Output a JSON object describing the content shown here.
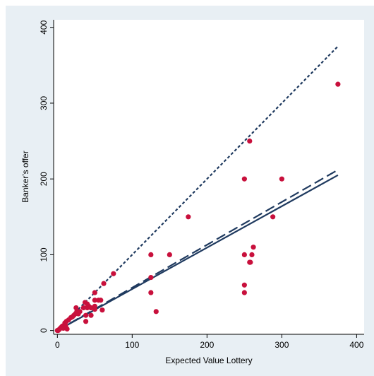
{
  "chart_data": {
    "type": "scatter",
    "title": "",
    "xlabel": "Expected Value Lottery",
    "ylabel": "Banker's offer",
    "xlim": [
      -5,
      410
    ],
    "ylim": [
      -5,
      410
    ],
    "xticks": [
      0,
      100,
      200,
      300,
      400
    ],
    "yticks": [
      0,
      100,
      200,
      300,
      400
    ],
    "xtick_labels": [
      "0",
      "100",
      "200",
      "300",
      "400"
    ],
    "ytick_labels": [
      "0",
      "100",
      "200",
      "300",
      "400"
    ],
    "grid": false,
    "legend": "none",
    "colors": {
      "background": "#e8eff4",
      "plot_area": "#ffffff",
      "points": "#c8103c",
      "lines": "#1f3a5f"
    },
    "points": [
      [
        0,
        0
      ],
      [
        1,
        0
      ],
      [
        2,
        1
      ],
      [
        3,
        2
      ],
      [
        4,
        3
      ],
      [
        5,
        4
      ],
      [
        6,
        5
      ],
      [
        7,
        6
      ],
      [
        8,
        3
      ],
      [
        10,
        10
      ],
      [
        11,
        6
      ],
      [
        12,
        12
      ],
      [
        13,
        2
      ],
      [
        15,
        14
      ],
      [
        18,
        17
      ],
      [
        20,
        18
      ],
      [
        22,
        20
      ],
      [
        24,
        22
      ],
      [
        25,
        30
      ],
      [
        26,
        25
      ],
      [
        28,
        22
      ],
      [
        30,
        25
      ],
      [
        35,
        30
      ],
      [
        37,
        37
      ],
      [
        38,
        20
      ],
      [
        38,
        12
      ],
      [
        40,
        35
      ],
      [
        40,
        30
      ],
      [
        42,
        32
      ],
      [
        45,
        30
      ],
      [
        45,
        20
      ],
      [
        50,
        50
      ],
      [
        50,
        40
      ],
      [
        50,
        32
      ],
      [
        50,
        28
      ],
      [
        55,
        40
      ],
      [
        58,
        40
      ],
      [
        60,
        27
      ],
      [
        62,
        62
      ],
      [
        75,
        75
      ],
      [
        125,
        100
      ],
      [
        125,
        70
      ],
      [
        125,
        50
      ],
      [
        132,
        25
      ],
      [
        150,
        100
      ],
      [
        175,
        150
      ],
      [
        250,
        200
      ],
      [
        250,
        100
      ],
      [
        250,
        60
      ],
      [
        250,
        50
      ],
      [
        257,
        250
      ],
      [
        257,
        90
      ],
      [
        260,
        100
      ],
      [
        262,
        110
      ],
      [
        288,
        150
      ],
      [
        300,
        200
      ],
      [
        375,
        325
      ],
      [
        258,
        90
      ]
    ],
    "lines": [
      {
        "style": "short-dash",
        "x": [
          0,
          375
        ],
        "y": [
          0,
          375
        ]
      },
      {
        "style": "long-dash",
        "x": [
          0,
          375
        ],
        "y": [
          0,
          212
        ]
      },
      {
        "style": "solid",
        "x": [
          0,
          375
        ],
        "y": [
          0,
          205
        ]
      }
    ]
  }
}
